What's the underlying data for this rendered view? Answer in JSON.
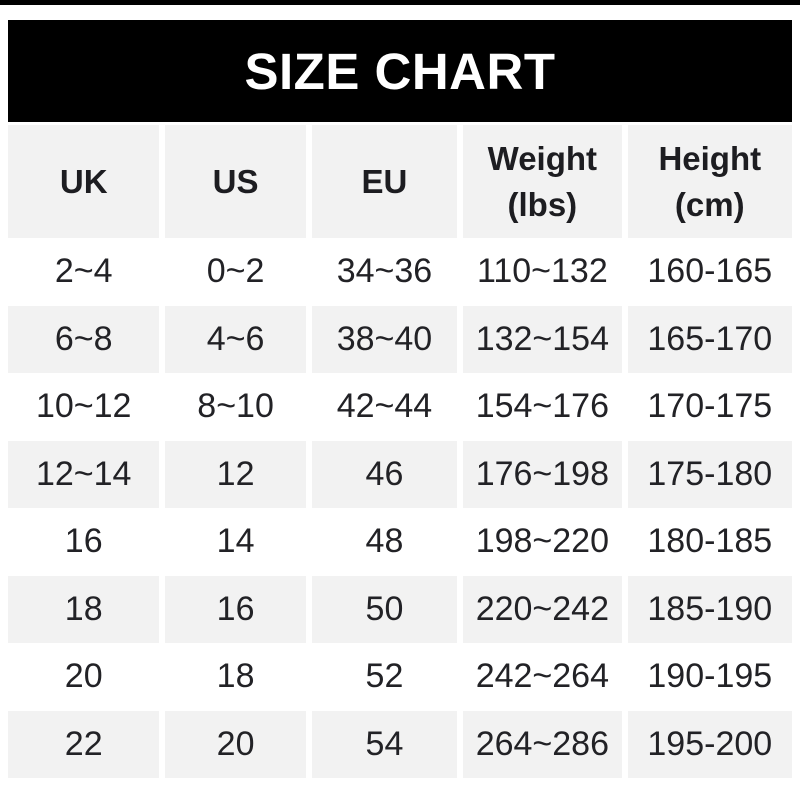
{
  "chart_data": {
    "type": "table",
    "title": "SIZE CHART",
    "columns": [
      "UK",
      "US",
      "EU",
      "Weight (lbs)",
      "Height (cm)"
    ],
    "rows": [
      [
        "2~4",
        "0~2",
        "34~36",
        "110~132",
        "160-165"
      ],
      [
        "6~8",
        "4~6",
        "38~40",
        "132~154",
        "165-170"
      ],
      [
        "10~12",
        "8~10",
        "42~44",
        "154~176",
        "170-175"
      ],
      [
        "12~14",
        "12",
        "46",
        "176~198",
        "175-180"
      ],
      [
        "16",
        "14",
        "48",
        "198~220",
        "180-185"
      ],
      [
        "18",
        "16",
        "50",
        "220~242",
        "185-190"
      ],
      [
        "20",
        "18",
        "52",
        "242~264",
        "190-195"
      ],
      [
        "22",
        "20",
        "54",
        "264~286",
        "195-200"
      ]
    ]
  },
  "header_display": [
    "UK",
    "US",
    "EU",
    "Weight\n(lbs)",
    "Height\n(cm)"
  ],
  "colors": {
    "banner_bg": "#000000",
    "banner_text": "#ffffff",
    "header_row_bg": "#f2f2f2",
    "row_bg": "#ffffff",
    "row_alt_bg": "#f2f2f2",
    "text": "#222226"
  }
}
